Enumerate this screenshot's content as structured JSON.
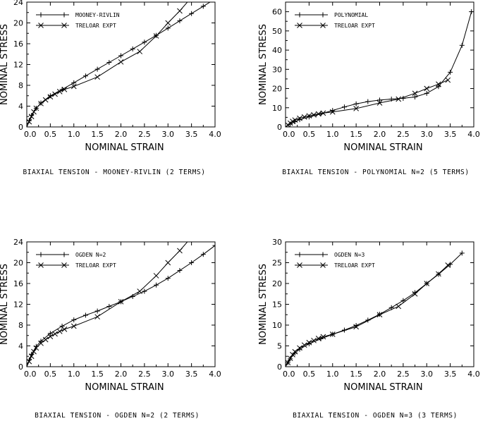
{
  "chart_data": [
    {
      "type": "line",
      "title": "BIAXIAL TENSION - MOONEY-RIVLIN (2 TERMS)",
      "xlabel": "NOMINAL STRAIN",
      "ylabel": "NOMINAL STRESS",
      "xlim": [
        0,
        4.0
      ],
      "ylim": [
        0,
        24
      ],
      "xticks": [
        0.0,
        0.5,
        1.0,
        1.5,
        2.0,
        2.5,
        3.0,
        3.5,
        4.0
      ],
      "yticks": [
        0,
        4,
        8,
        12,
        16,
        20,
        24
      ],
      "legend_position": "top-left",
      "series": [
        {
          "name": "MOONEY-RIVLIN",
          "marker": "plus",
          "x": [
            0.0,
            0.05,
            0.1,
            0.2,
            0.3,
            0.5,
            0.75,
            1.0,
            1.25,
            1.5,
            1.75,
            2.0,
            2.25,
            2.5,
            2.75,
            3.0,
            3.25,
            3.5,
            3.75,
            4.0
          ],
          "y": [
            0.0,
            1.2,
            2.2,
            3.6,
            4.6,
            6.0,
            7.2,
            8.5,
            9.8,
            11.1,
            12.4,
            13.7,
            15.0,
            16.3,
            17.6,
            19.0,
            20.4,
            21.8,
            23.2,
            24.6
          ]
        },
        {
          "name": "TRELOAR EXPT",
          "marker": "x",
          "x": [
            0.0,
            0.05,
            0.1,
            0.15,
            0.2,
            0.3,
            0.4,
            0.5,
            0.6,
            0.7,
            0.8,
            1.0,
            1.5,
            2.0,
            2.4,
            2.75,
            3.0,
            3.25,
            3.45
          ],
          "y": [
            0.0,
            1.0,
            2.0,
            2.9,
            3.6,
            4.5,
            5.2,
            5.8,
            6.3,
            6.8,
            7.2,
            7.8,
            9.6,
            12.5,
            14.5,
            17.5,
            20.0,
            22.3,
            24.4
          ]
        }
      ]
    },
    {
      "type": "line",
      "title": "BIAXIAL TENSION - POLYNOMIAL N=2 (5 TERMS)",
      "xlabel": "NOMINAL STRAIN",
      "ylabel": "NOMINAL STRESS",
      "xlim": [
        0,
        4.0
      ],
      "ylim": [
        0,
        65
      ],
      "xticks": [
        0.0,
        0.5,
        1.0,
        1.5,
        2.0,
        2.5,
        3.0,
        3.5,
        4.0
      ],
      "yticks": [
        0,
        10,
        20,
        30,
        40,
        50,
        60
      ],
      "legend_position": "top-left",
      "series": [
        {
          "name": "POLYNOMIAL",
          "marker": "plus",
          "x": [
            0.0,
            0.1,
            0.2,
            0.3,
            0.5,
            0.75,
            1.0,
            1.25,
            1.5,
            1.75,
            2.0,
            2.25,
            2.5,
            2.75,
            3.0,
            3.25,
            3.5,
            3.75,
            3.95
          ],
          "y": [
            0.0,
            1.5,
            2.8,
            3.8,
            5.2,
            6.8,
            8.6,
            10.4,
            12.0,
            13.2,
            14.0,
            14.5,
            14.9,
            15.6,
            17.5,
            21.0,
            28.5,
            42.5,
            60.0
          ]
        },
        {
          "name": "TRELOAR EXPT",
          "marker": "x",
          "x": [
            0.0,
            0.05,
            0.1,
            0.15,
            0.2,
            0.3,
            0.4,
            0.5,
            0.6,
            0.7,
            0.8,
            1.0,
            1.5,
            2.0,
            2.4,
            2.75,
            3.0,
            3.25,
            3.45
          ],
          "y": [
            0.0,
            1.0,
            2.0,
            2.9,
            3.6,
            4.5,
            5.2,
            5.8,
            6.3,
            6.8,
            7.2,
            7.8,
            9.6,
            12.5,
            14.5,
            17.5,
            20.0,
            22.3,
            24.4
          ]
        }
      ]
    },
    {
      "type": "line",
      "title": "BIAXIAL TENSION - OGDEN N=2 (2 TERMS)",
      "xlabel": "NOMINAL STRAIN",
      "ylabel": "NOMINAL STRESS",
      "xlim": [
        0,
        4.0
      ],
      "ylim": [
        0,
        24
      ],
      "xticks": [
        0.0,
        0.5,
        1.0,
        1.5,
        2.0,
        2.5,
        3.0,
        3.5,
        4.0
      ],
      "yticks": [
        0,
        4,
        8,
        12,
        16,
        20,
        24
      ],
      "legend_position": "top-left",
      "series": [
        {
          "name": "OGDEN N=2",
          "marker": "plus",
          "x": [
            0.0,
            0.05,
            0.1,
            0.2,
            0.3,
            0.5,
            0.75,
            1.0,
            1.25,
            1.5,
            1.75,
            2.0,
            2.25,
            2.5,
            2.75,
            3.0,
            3.25,
            3.5,
            3.75,
            4.0
          ],
          "y": [
            0.0,
            1.3,
            2.4,
            3.9,
            4.9,
            6.4,
            7.8,
            9.0,
            9.9,
            10.7,
            11.6,
            12.5,
            13.5,
            14.5,
            15.7,
            17.0,
            18.5,
            20.0,
            21.6,
            23.3
          ]
        },
        {
          "name": "TRELOAR EXPT",
          "marker": "x",
          "x": [
            0.0,
            0.05,
            0.1,
            0.15,
            0.2,
            0.3,
            0.4,
            0.5,
            0.6,
            0.7,
            0.8,
            1.0,
            1.5,
            2.0,
            2.4,
            2.75,
            3.0,
            3.25,
            3.45
          ],
          "y": [
            0.0,
            1.0,
            2.0,
            2.9,
            3.6,
            4.5,
            5.2,
            5.8,
            6.3,
            6.8,
            7.2,
            7.8,
            9.6,
            12.5,
            14.5,
            17.5,
            20.0,
            22.3,
            24.4
          ]
        }
      ]
    },
    {
      "type": "line",
      "title": "BIAXIAL TENSION - OGDEN N=3 (3 TERMS)",
      "xlabel": "NOMINAL STRAIN",
      "ylabel": "NOMINAL STRESS",
      "xlim": [
        0,
        4.0
      ],
      "ylim": [
        0,
        30
      ],
      "xticks": [
        0.0,
        0.5,
        1.0,
        1.5,
        2.0,
        2.5,
        3.0,
        3.5,
        4.0
      ],
      "yticks": [
        0,
        5,
        10,
        15,
        20,
        25,
        30
      ],
      "legend_position": "top-left",
      "series": [
        {
          "name": "OGDEN N=3",
          "marker": "plus",
          "x": [
            0.0,
            0.05,
            0.1,
            0.2,
            0.3,
            0.5,
            0.75,
            1.0,
            1.25,
            1.5,
            1.75,
            2.0,
            2.25,
            2.5,
            2.75,
            3.0,
            3.25,
            3.5,
            3.75
          ],
          "y": [
            0.0,
            1.0,
            1.9,
            3.3,
            4.2,
            5.5,
            6.7,
            7.8,
            8.8,
            9.9,
            11.2,
            12.6,
            14.2,
            15.9,
            17.8,
            20.0,
            22.2,
            24.6,
            27.3
          ]
        },
        {
          "name": "TRELOAR EXPT",
          "marker": "x",
          "x": [
            0.0,
            0.05,
            0.1,
            0.15,
            0.2,
            0.3,
            0.4,
            0.5,
            0.6,
            0.7,
            0.8,
            1.0,
            1.5,
            2.0,
            2.4,
            2.75,
            3.0,
            3.25,
            3.45
          ],
          "y": [
            0.0,
            1.0,
            2.0,
            2.9,
            3.6,
            4.5,
            5.2,
            5.8,
            6.3,
            6.8,
            7.2,
            7.8,
            9.6,
            12.5,
            14.5,
            17.5,
            20.0,
            22.3,
            24.4
          ]
        }
      ]
    }
  ]
}
